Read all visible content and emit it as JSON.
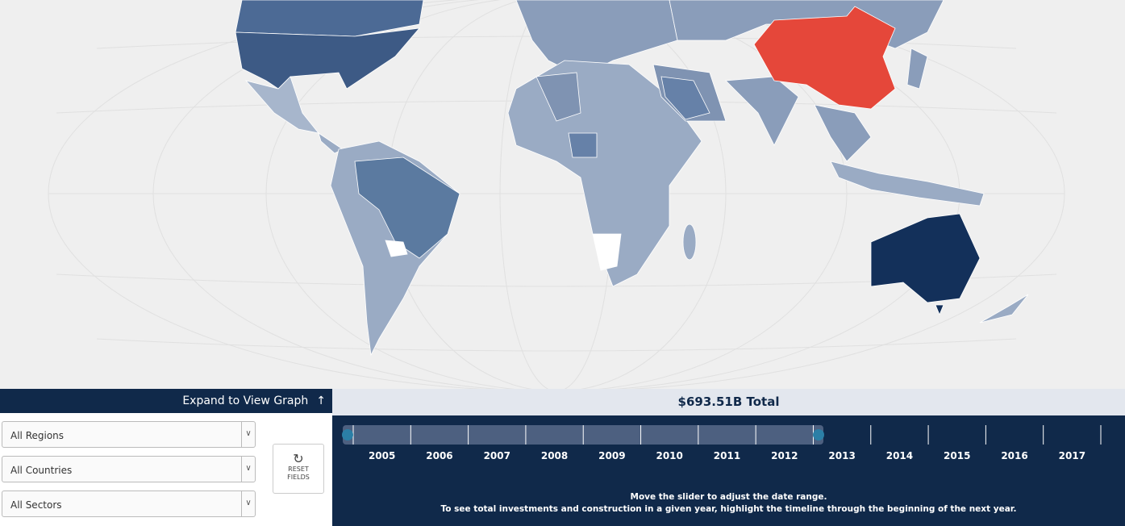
{
  "header": {
    "expand_label": "Expand to View Graph",
    "total": "$693.51B Total"
  },
  "filters": [
    "All Regions",
    "All Countries",
    "All Sectors"
  ],
  "reset_button": {
    "line1": "RESET",
    "line2": "FIELDS"
  },
  "timeline": {
    "years": [
      "2005",
      "2006",
      "2007",
      "2008",
      "2009",
      "2010",
      "2011",
      "2012",
      "2013",
      "2014",
      "2015",
      "2016",
      "2017"
    ],
    "instructions": [
      "Move the slider to adjust the date range.",
      "To see total investments and construction in a given year, highlight the timeline through the beginning of the next year."
    ]
  }
}
